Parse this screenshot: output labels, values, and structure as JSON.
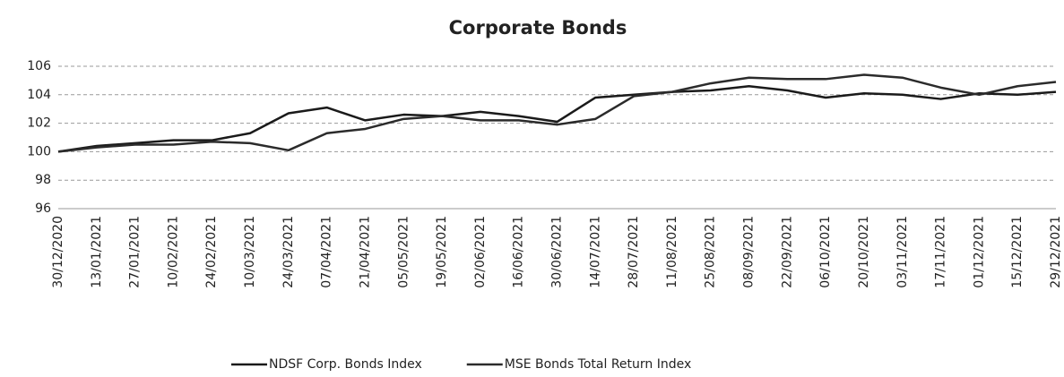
{
  "chart_data": {
    "type": "line",
    "title": "Corporate Bonds",
    "categories": [
      "30/12/2020",
      "13/01/2021",
      "27/01/2021",
      "10/02/2021",
      "24/02/2021",
      "10/03/2021",
      "24/03/2021",
      "07/04/2021",
      "21/04/2021",
      "05/05/2021",
      "19/05/2021",
      "02/06/2021",
      "16/06/2021",
      "30/06/2021",
      "14/07/2021",
      "28/07/2021",
      "11/08/2021",
      "25/08/2021",
      "08/09/2021",
      "22/09/2021",
      "06/10/2021",
      "20/10/2021",
      "03/11/2021",
      "17/11/2021",
      "01/12/2021",
      "15/12/2021",
      "29/12/2021"
    ],
    "series": [
      {
        "name": "NDSF Corp. Bonds Index",
        "color": "#1a1a1a",
        "values": [
          100,
          100.4,
          100.6,
          100.8,
          100.8,
          101.3,
          102.7,
          103.1,
          102.2,
          102.6,
          102.5,
          102.8,
          102.5,
          102.1,
          103.8,
          104,
          104.2,
          104.3,
          104.6,
          104.3,
          103.8,
          104.1,
          104,
          103.7,
          104.1,
          104,
          104.2
        ]
      },
      {
        "name": "MSE Bonds Total Return Index",
        "color": "#2b2b2b",
        "values": [
          100,
          100.3,
          100.5,
          100.5,
          100.7,
          100.6,
          100.1,
          101.3,
          101.6,
          102.3,
          102.5,
          102.2,
          102.2,
          101.9,
          102.3,
          103.9,
          104.2,
          104.8,
          105.2,
          105.1,
          105.1,
          105.4,
          105.2,
          104.5,
          104,
          104.6,
          104.9
        ]
      }
    ],
    "ylim": [
      96,
      106
    ],
    "yticks": [
      96,
      98,
      100,
      102,
      104,
      106
    ],
    "grid": true
  }
}
